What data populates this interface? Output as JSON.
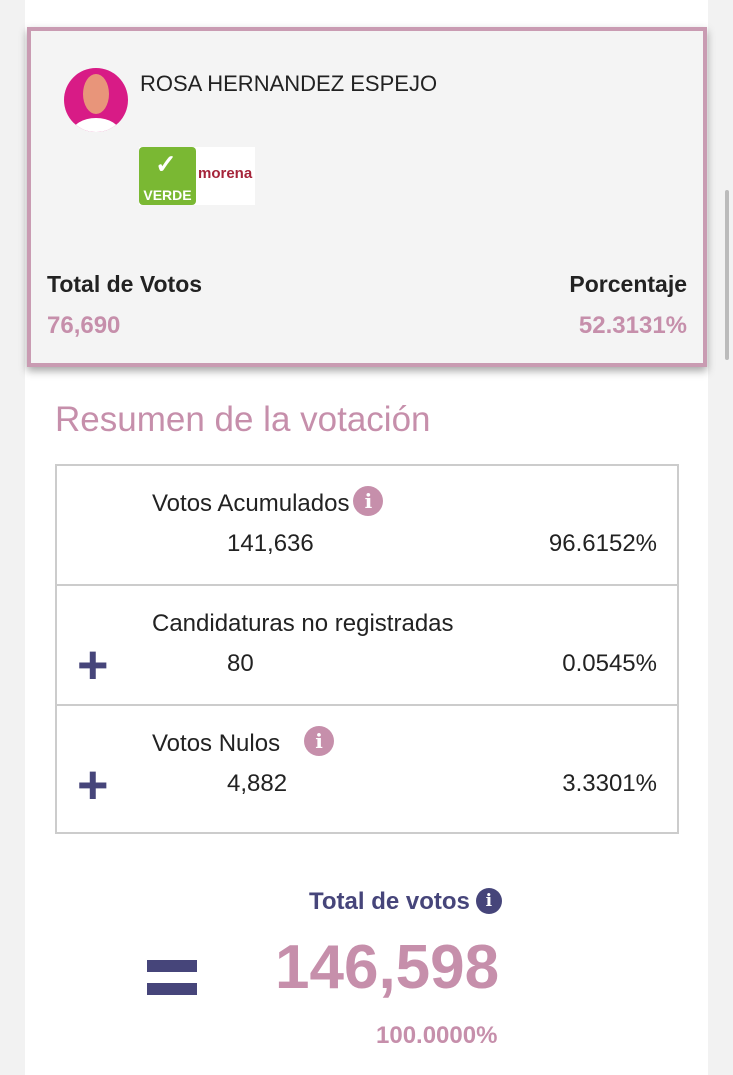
{
  "candidate": {
    "name": "ROSA HERNANDEZ ESPEJO",
    "parties": [
      "VERDE",
      "morena"
    ],
    "total_label": "Total de Votos",
    "total_value": "76,690",
    "pct_label": "Porcentaje",
    "pct_value": "52.3131%"
  },
  "summary": {
    "title": "Resumen de la votación",
    "rows": [
      {
        "label": "Votos Acumulados",
        "votes": "141,636",
        "pct": "96.6152%"
      },
      {
        "label": "Candidaturas no registradas",
        "votes": "80",
        "pct": "0.0545%"
      },
      {
        "label": "Votos Nulos",
        "votes": "4,882",
        "pct": "3.3301%"
      }
    ],
    "total_label": "Total de votos",
    "total_value": "146,598",
    "total_pct": "100.0000%"
  },
  "colors": {
    "accent": "#c68fab",
    "dark": "#46457a"
  }
}
